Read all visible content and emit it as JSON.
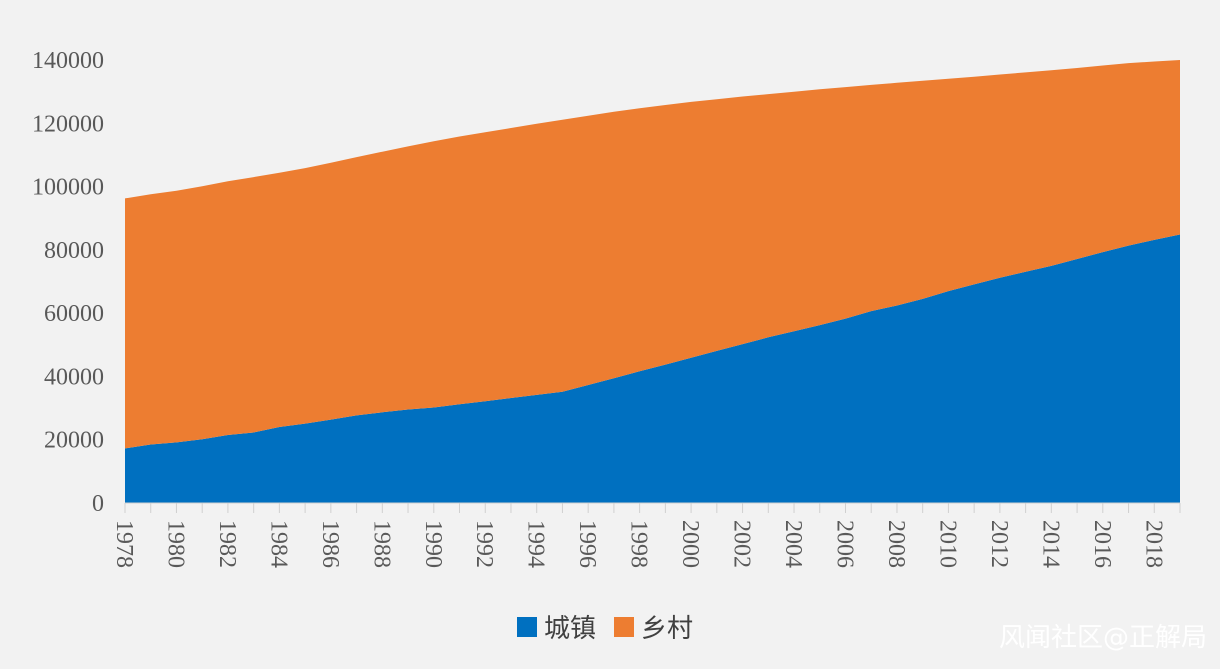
{
  "chart_data": {
    "type": "area",
    "stacked": true,
    "title": "",
    "xlabel": "",
    "ylabel": "",
    "ylim": [
      0,
      140000
    ],
    "y_ticks": [
      0,
      20000,
      40000,
      60000,
      80000,
      100000,
      120000,
      140000
    ],
    "x_tick_labels": [
      "1978",
      "1980",
      "1982",
      "1984",
      "1986",
      "1988",
      "1990",
      "1992",
      "1994",
      "1996",
      "1998",
      "2000",
      "2002",
      "2004",
      "2006",
      "2008",
      "2010",
      "2012",
      "2014",
      "2016",
      "2018"
    ],
    "x": [
      1978,
      1979,
      1980,
      1981,
      1982,
      1983,
      1984,
      1985,
      1986,
      1987,
      1988,
      1989,
      1990,
      1991,
      1992,
      1993,
      1994,
      1995,
      1996,
      1997,
      1998,
      1999,
      2000,
      2001,
      2002,
      2003,
      2004,
      2005,
      2006,
      2007,
      2008,
      2009,
      2010,
      2011,
      2012,
      2013,
      2014,
      2015,
      2016,
      2017,
      2018,
      2019
    ],
    "series": [
      {
        "name": "城镇",
        "color": "#0070c0",
        "values": [
          17245,
          18495,
          19140,
          20171,
          21480,
          22274,
          24017,
          25094,
          26366,
          27674,
          28661,
          29540,
          30195,
          31203,
          32175,
          33173,
          34169,
          35174,
          37304,
          39449,
          41608,
          43748,
          45906,
          48064,
          50212,
          52376,
          54283,
          56212,
          58288,
          60633,
          62403,
          64512,
          66978,
          69079,
          71182,
          73111,
          74916,
          77116,
          79298,
          81347,
          83137,
          84843
        ]
      },
      {
        "name": "乡村",
        "color": "#ed7d31",
        "values": [
          79014,
          79047,
          79565,
          79901,
          80174,
          80734,
          80340,
          80757,
          81141,
          81626,
          82365,
          83164,
          84138,
          84620,
          84996,
          85344,
          85681,
          85947,
          85085,
          84177,
          83153,
          82038,
          80837,
          79563,
          78241,
          76851,
          75705,
          74544,
          73160,
          71496,
          70399,
          68938,
          67113,
          65656,
          64222,
          62961,
          61866,
          60346,
          58973,
          57661,
          56401,
          55162
        ]
      }
    ],
    "legend": {
      "position": "bottom",
      "entries": [
        "城镇",
        "乡村"
      ]
    }
  },
  "watermark": "风闻社区@正解局"
}
